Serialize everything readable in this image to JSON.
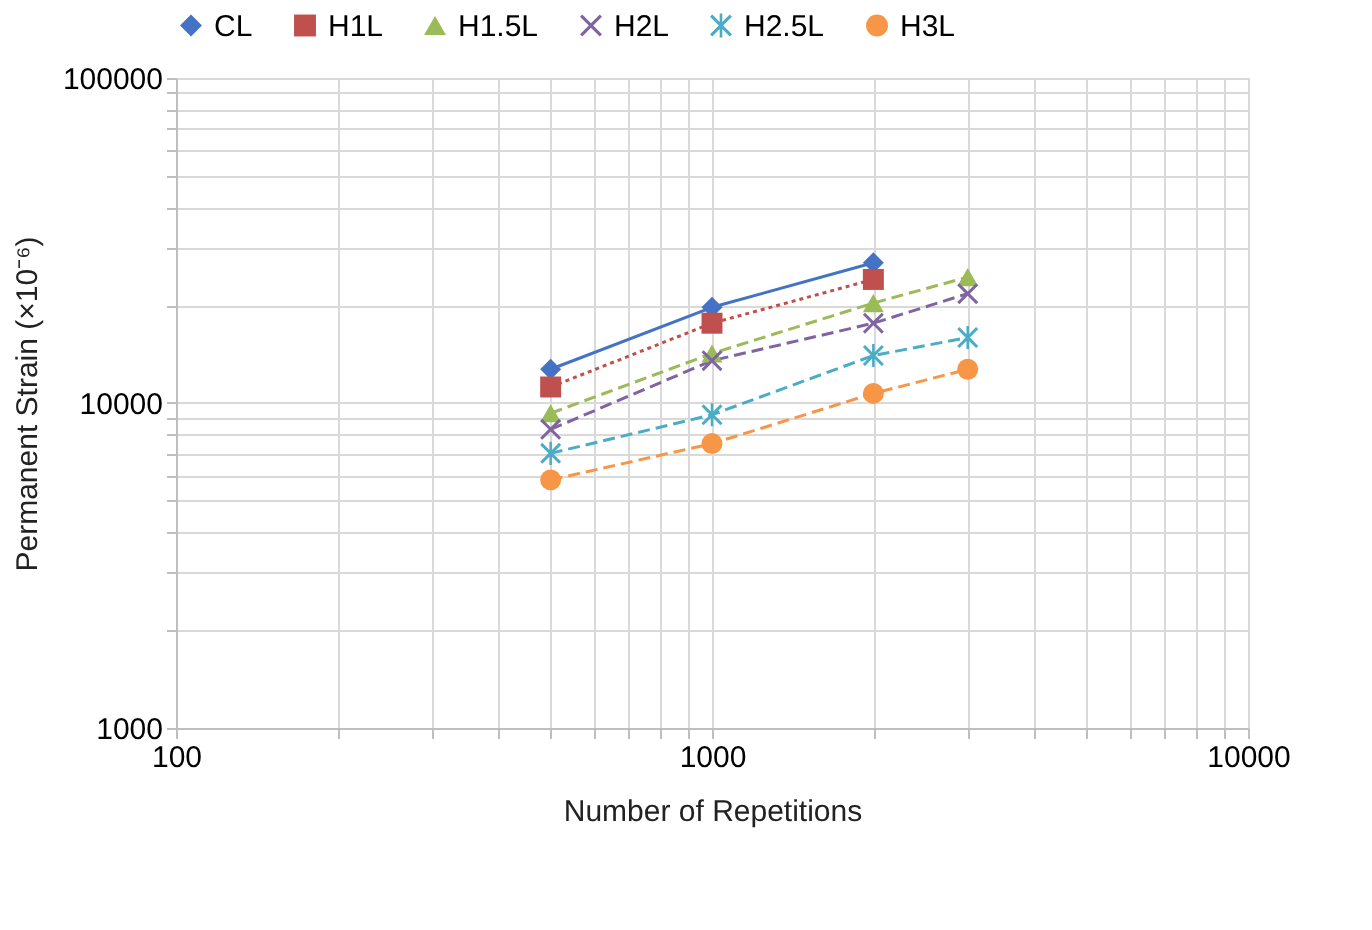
{
  "chart_data": {
    "type": "line",
    "xlabel": "Number of Repetitions",
    "ylabel": "Permanent Strain (×10⁻⁶)",
    "log": "xy",
    "grid": true,
    "legend": "top",
    "xlim": [
      100,
      10000
    ],
    "xticks": [
      100,
      {
        "value": 200,
        "label": null
      },
      {
        "value": 300,
        "label": null
      },
      {
        "value": 400,
        "label": null
      },
      {
        "value": 500,
        "label": null
      },
      {
        "value": 600,
        "label": null
      },
      {
        "value": 700,
        "label": null
      },
      {
        "value": 800,
        "label": null
      },
      {
        "value": 900,
        "label": null
      },
      1000,
      {
        "value": 2000,
        "label": null
      },
      {
        "value": 3000,
        "label": null
      },
      {
        "value": 4000,
        "label": null
      },
      {
        "value": 5000,
        "label": null
      },
      {
        "value": 6000,
        "label": null
      },
      {
        "value": 7000,
        "label": null
      },
      {
        "value": 8000,
        "label": null
      },
      {
        "value": 9000,
        "label": null
      },
      10000
    ],
    "ylim": [
      1000,
      100000
    ],
    "yticks": [
      1000,
      {
        "value": 2000,
        "label": null
      },
      {
        "value": 3000,
        "label": null
      },
      {
        "value": 4000,
        "label": null
      },
      {
        "value": 5000,
        "label": null
      },
      {
        "value": 6000,
        "label": null
      },
      {
        "value": 7000,
        "label": null
      },
      {
        "value": 8000,
        "label": null
      },
      {
        "value": 9000,
        "label": null
      },
      10000,
      {
        "value": 20000,
        "label": null
      },
      {
        "value": 30000,
        "label": null
      },
      {
        "value": 40000,
        "label": null
      },
      {
        "value": 50000,
        "label": null
      },
      {
        "value": 60000,
        "label": null
      },
      {
        "value": 70000,
        "label": null
      },
      {
        "value": 80000,
        "label": null
      },
      {
        "value": 90000,
        "label": null
      },
      100000
    ],
    "series": [
      {
        "name": "CL",
        "color": "#4472c4",
        "marker": "diamond",
        "line_style": "solid",
        "x": [
          500,
          1000,
          2000
        ],
        "values": [
          12700,
          19700,
          27000
        ]
      },
      {
        "name": "H1L",
        "color": "#c0504d",
        "marker": "square",
        "line_style": "dotted",
        "x": [
          500,
          1000,
          2000
        ],
        "values": [
          11200,
          17600,
          24000
        ]
      },
      {
        "name": "H1.5L",
        "color": "#9bbb59",
        "marker": "triangle",
        "line_style": "dashed",
        "x": [
          500,
          1000,
          2000,
          3000
        ],
        "values": [
          9300,
          14200,
          20300,
          24400
        ]
      },
      {
        "name": "H2L",
        "color": "#8064a2",
        "marker": "cross",
        "line_style": "dashed",
        "x": [
          500,
          1000,
          2000,
          3000
        ],
        "values": [
          8300,
          13500,
          17600,
          21700
        ]
      },
      {
        "name": "H2.5L",
        "color": "#4bacc6",
        "marker": "star",
        "line_style": "dashed",
        "x": [
          500,
          1000,
          2000,
          3000
        ],
        "values": [
          7000,
          9200,
          14000,
          15900
        ]
      },
      {
        "name": "H3L",
        "color": "#f79646",
        "marker": "circle",
        "line_style": "dashed",
        "x": [
          500,
          1000,
          2000,
          3000
        ],
        "values": [
          5800,
          7500,
          10700,
          12700
        ]
      }
    ]
  }
}
